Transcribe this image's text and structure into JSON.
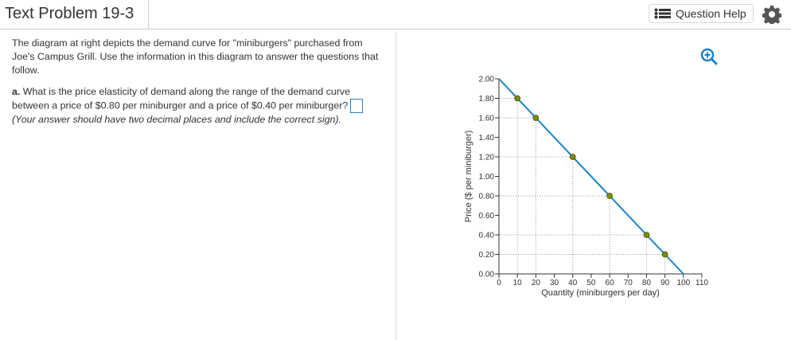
{
  "header": {
    "title": "Text Problem 19-3",
    "help_button": "Question Help"
  },
  "question": {
    "intro": "The diagram at right depicts the demand curve for \"miniburgers\" purchased from Joe's Campus Grill. Use the information in this diagram to answer the questions that follow.",
    "part_label": "a.",
    "part_text": "What is the price elasticity of demand along the range of the demand curve between a price of $0.80 per miniburger and a price of $0.40 per miniburger?",
    "hint": "(Your answer should have two decimal places and include the correct sign)."
  },
  "chart_data": {
    "type": "line",
    "x_label": "Quantity (miniburgers per day)",
    "y_label": "Price ($ per miniburger)",
    "curve_x": [
      0,
      100
    ],
    "curve_values": [
      2.0,
      0.0
    ],
    "x": [
      10,
      20,
      40,
      60,
      80,
      90
    ],
    "values": [
      1.8,
      1.6,
      1.2,
      0.8,
      0.4,
      0.2
    ],
    "color": "#1b84c6",
    "marker_color": "#7d8a12",
    "guides": true,
    "xlim": [
      0,
      110
    ],
    "ylim": [
      0,
      2.0
    ],
    "xticks": [
      0,
      10,
      20,
      30,
      40,
      50,
      60,
      70,
      80,
      90,
      100,
      110
    ],
    "yticks": [
      {
        "value": 0,
        "label": "0.00"
      },
      {
        "value": 0.2,
        "label": "0.20"
      },
      {
        "value": 0.4,
        "label": "0.40"
      },
      {
        "value": 0.6,
        "label": "0.60"
      },
      {
        "value": 0.8,
        "label": "0.80"
      },
      {
        "value": 1.0,
        "label": "1.00"
      },
      {
        "value": 1.2,
        "label": "1.20"
      },
      {
        "value": 1.4,
        "label": "1.40"
      },
      {
        "value": 1.6,
        "label": "1.60"
      },
      {
        "value": 1.8,
        "label": "1.80"
      },
      {
        "value": 2.0,
        "label": "2.00"
      }
    ]
  }
}
